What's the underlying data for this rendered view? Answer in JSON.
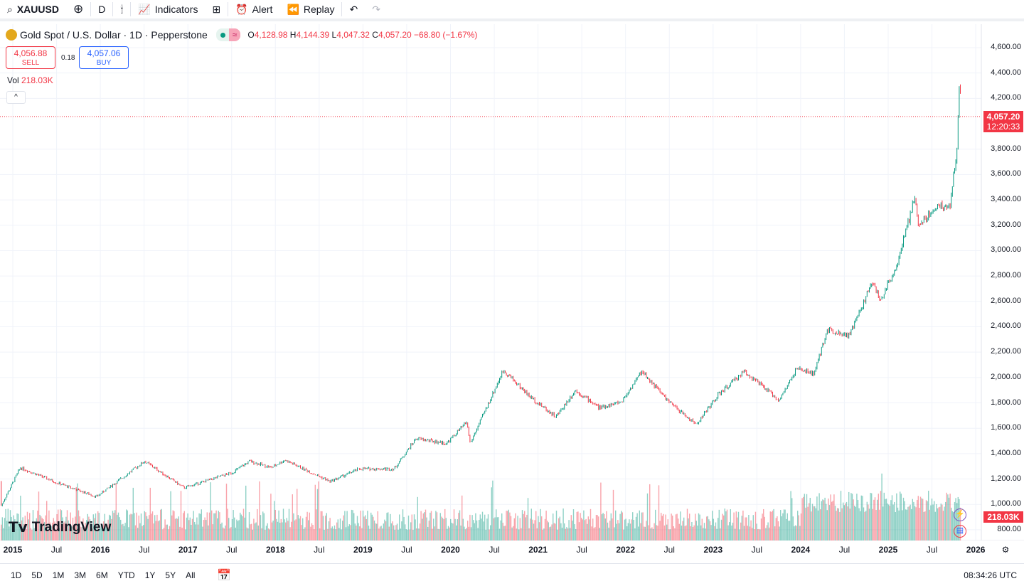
{
  "toolbar": {
    "symbol": "XAUUSD",
    "interval": "D",
    "indicators": "Indicators",
    "alert": "Alert",
    "replay": "Replay"
  },
  "legend": {
    "title": "Gold Spot / U.S. Dollar · 1D · Pepperstone",
    "o_label": "O",
    "o": "4,128.98",
    "h_label": "H",
    "h": "4,144.39",
    "l_label": "L",
    "l": "4,047.32",
    "c_label": "C",
    "c": "4,057.20",
    "change": "−68.80 (−1.67%)"
  },
  "trade": {
    "sell_price": "4,056.88",
    "sell_label": "SELL",
    "spread": "0.18",
    "buy_price": "4,057.06",
    "buy_label": "BUY"
  },
  "volume": {
    "label": "Vol",
    "value": "218.03K"
  },
  "price_axis": [
    "4,600.00",
    "4,400.00",
    "4,200.00",
    "3,800.00",
    "3,600.00",
    "3,400.00",
    "3,200.00",
    "3,000.00",
    "2,800.00",
    "2,600.00",
    "2,400.00",
    "2,200.00",
    "2,000.00",
    "1,800.00",
    "1,600.00",
    "1,400.00",
    "1,200.00",
    "1,000.00",
    "800.00"
  ],
  "last_price": {
    "price": "4,057.20",
    "countdown": "12:20:33",
    "volume_tag": "218.03K"
  },
  "time_axis": [
    "2015",
    "Jul",
    "2016",
    "Jul",
    "2017",
    "Jul",
    "2018",
    "Jul",
    "2019",
    "Jul",
    "2020",
    "Jul",
    "2021",
    "Jul",
    "2022",
    "Jul",
    "2023",
    "Jul",
    "2024",
    "Jul",
    "2025",
    "Jul",
    "2026"
  ],
  "brand": "TradingView",
  "ranges": [
    "1D",
    "5D",
    "1M",
    "3M",
    "6M",
    "YTD",
    "1Y",
    "5Y",
    "All"
  ],
  "clock": "08:34:26 UTC",
  "colors": {
    "up": "#089981",
    "down": "#f23645",
    "accent": "#2962ff"
  },
  "chart_data": {
    "type": "candlestick",
    "x_unit": "year",
    "ylim": [
      800,
      4600
    ],
    "key_prices": [
      [
        2015.0,
        1180
      ],
      [
        2015.08,
        1290
      ],
      [
        2015.5,
        1170
      ],
      [
        2015.95,
        1060
      ],
      [
        2016.5,
        1340
      ],
      [
        2016.95,
        1130
      ],
      [
        2017.5,
        1250
      ],
      [
        2017.7,
        1340
      ],
      [
        2017.95,
        1290
      ],
      [
        2018.1,
        1350
      ],
      [
        2018.62,
        1180
      ],
      [
        2018.95,
        1280
      ],
      [
        2019.35,
        1280
      ],
      [
        2019.6,
        1520
      ],
      [
        2019.95,
        1480
      ],
      [
        2020.18,
        1650
      ],
      [
        2020.22,
        1480
      ],
      [
        2020.6,
        2060
      ],
      [
        2020.9,
        1850
      ],
      [
        2021.2,
        1690
      ],
      [
        2021.42,
        1900
      ],
      [
        2021.7,
        1760
      ],
      [
        2021.95,
        1810
      ],
      [
        2022.18,
        2050
      ],
      [
        2022.5,
        1800
      ],
      [
        2022.8,
        1630
      ],
      [
        2023.05,
        1860
      ],
      [
        2023.35,
        2050
      ],
      [
        2023.75,
        1820
      ],
      [
        2023.95,
        2070
      ],
      [
        2024.15,
        2030
      ],
      [
        2024.3,
        2380
      ],
      [
        2024.55,
        2330
      ],
      [
        2024.82,
        2760
      ],
      [
        2024.9,
        2600
      ],
      [
        2025.1,
        2900
      ],
      [
        2025.3,
        3420
      ],
      [
        2025.34,
        3200
      ],
      [
        2025.55,
        3350
      ],
      [
        2025.7,
        3350
      ],
      [
        2025.78,
        3800
      ],
      [
        2025.81,
        4360
      ],
      [
        2025.84,
        4057.2
      ]
    ]
  }
}
